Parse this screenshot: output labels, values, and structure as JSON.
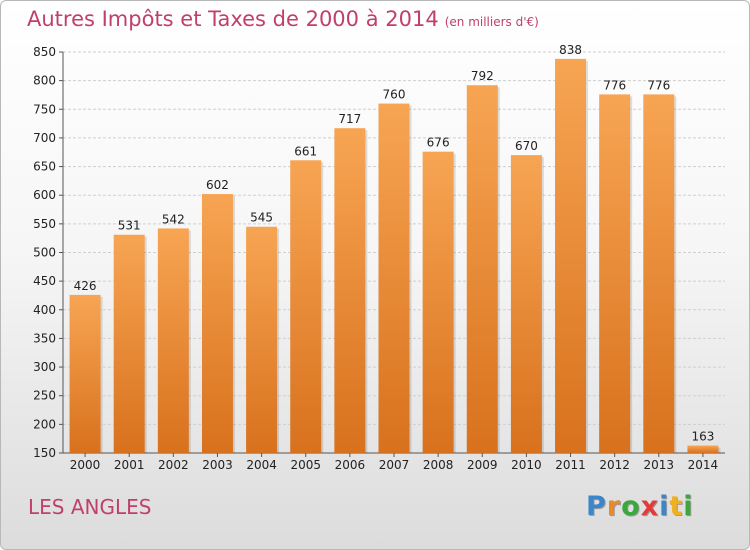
{
  "title": "Autres Impôts et Taxes de 2000 à 2014",
  "unit_label": "(en milliers d'€)",
  "commune": "LES ANGLES",
  "brand": {
    "letters": [
      "P",
      "r",
      "o",
      "x",
      "i",
      "t",
      "i"
    ],
    "colors": [
      "#3b86c8",
      "#e8892a",
      "#3aa83a",
      "#e23b3b",
      "#3b86c8",
      "#f0b020",
      "#3aa83a"
    ]
  },
  "colors": {
    "bar_top": "#f7a553",
    "bar_bottom": "#d8711d",
    "title": "#c0406a",
    "grid": "#cfcfcf"
  },
  "chart_data": {
    "type": "bar",
    "title": "Autres Impôts et Taxes de 2000 à 2014",
    "categories": [
      "2000",
      "2001",
      "2002",
      "2003",
      "2004",
      "2005",
      "2006",
      "2007",
      "2008",
      "2009",
      "2010",
      "2011",
      "2012",
      "2013",
      "2014"
    ],
    "values": [
      426,
      531,
      542,
      602,
      545,
      661,
      717,
      760,
      676,
      792,
      670,
      838,
      776,
      776,
      163
    ],
    "ylim": [
      150,
      850
    ],
    "yticks": [
      150,
      200,
      250,
      300,
      350,
      400,
      450,
      500,
      550,
      600,
      650,
      700,
      750,
      800,
      850
    ],
    "grid": true,
    "xlabel": "",
    "ylabel": ""
  }
}
